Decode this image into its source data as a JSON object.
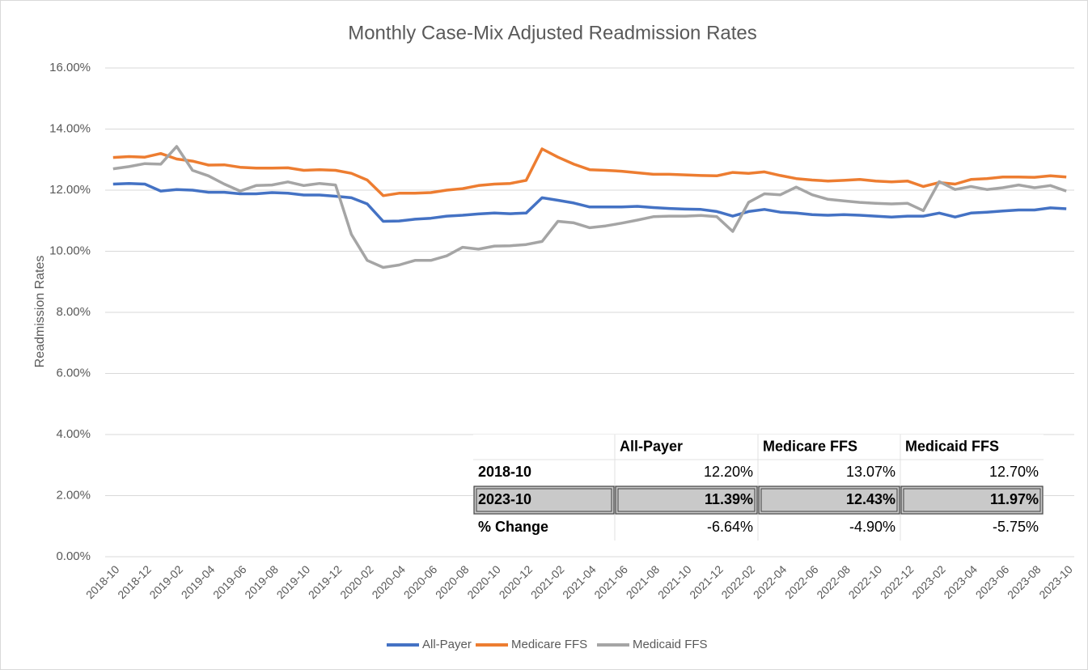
{
  "chart_data": {
    "type": "line",
    "title": "Monthly Case-Mix Adjusted Readmission Rates",
    "y_label": "Readmission Rates",
    "categories": [
      "2018-10",
      null,
      "2018-12",
      null,
      "2019-02",
      null,
      "2019-04",
      null,
      "2019-06",
      null,
      "2019-08",
      null,
      "2019-10",
      null,
      "2019-12",
      null,
      "2020-02",
      null,
      "2020-04",
      null,
      "2020-06",
      null,
      "2020-08",
      null,
      "2020-10",
      null,
      "2020-12",
      null,
      "2021-02",
      null,
      "2021-04",
      null,
      "2021-06",
      null,
      "2021-08",
      null,
      "2021-10",
      null,
      "2021-12",
      null,
      "2022-02",
      null,
      "2022-04",
      null,
      "2022-06",
      null,
      "2022-08",
      null,
      "2022-10",
      null,
      "2022-12",
      null,
      "2023-02",
      null,
      "2023-04",
      null,
      "2023-06",
      null,
      "2023-08",
      null,
      "2023-10"
    ],
    "series": [
      {
        "name": "All-Payer",
        "color": "#4472c4",
        "values": [
          12.2,
          12.22,
          12.2,
          11.97,
          12.02,
          12.0,
          11.93,
          11.93,
          11.88,
          11.88,
          11.92,
          11.9,
          11.84,
          11.84,
          11.8,
          11.75,
          11.55,
          10.98,
          10.99,
          11.05,
          11.08,
          11.15,
          11.18,
          11.22,
          11.25,
          11.23,
          11.25,
          11.75,
          11.67,
          11.58,
          11.45,
          11.45,
          11.45,
          11.47,
          11.43,
          11.4,
          11.38,
          11.37,
          11.3,
          11.15,
          11.3,
          11.37,
          11.28,
          11.25,
          11.2,
          11.18,
          11.2,
          11.18,
          11.15,
          11.12,
          11.15,
          11.15,
          11.25,
          11.12,
          11.25,
          11.28,
          11.32,
          11.35,
          11.35,
          11.42,
          11.39
        ]
      },
      {
        "name": "Medicare FFS",
        "color": "#ed7d31",
        "values": [
          13.07,
          13.1,
          13.08,
          13.2,
          13.02,
          12.95,
          12.82,
          12.83,
          12.75,
          12.72,
          12.72,
          12.73,
          12.65,
          12.67,
          12.65,
          12.55,
          12.33,
          11.82,
          11.9,
          11.9,
          11.92,
          12.0,
          12.05,
          12.15,
          12.2,
          12.22,
          12.32,
          13.35,
          13.08,
          12.85,
          12.67,
          12.65,
          12.62,
          12.57,
          12.52,
          12.52,
          12.5,
          12.48,
          12.47,
          12.58,
          12.55,
          12.6,
          12.48,
          12.38,
          12.33,
          12.3,
          12.32,
          12.35,
          12.3,
          12.27,
          12.3,
          12.12,
          12.25,
          12.2,
          12.35,
          12.38,
          12.43,
          12.43,
          12.42,
          12.47,
          12.43
        ]
      },
      {
        "name": "Medicaid FFS",
        "color": "#a5a5a5",
        "values": [
          12.7,
          12.77,
          12.87,
          12.85,
          13.43,
          12.65,
          12.47,
          12.2,
          11.97,
          12.15,
          12.17,
          12.27,
          12.15,
          12.22,
          12.17,
          10.55,
          9.7,
          9.47,
          9.55,
          9.7,
          9.7,
          9.85,
          10.13,
          10.07,
          10.17,
          10.18,
          10.22,
          10.32,
          10.98,
          10.93,
          10.77,
          10.83,
          10.92,
          11.02,
          11.13,
          11.15,
          11.15,
          11.17,
          11.13,
          10.65,
          11.6,
          11.88,
          11.85,
          12.1,
          11.85,
          11.7,
          11.65,
          11.6,
          11.57,
          11.55,
          11.57,
          11.33,
          12.28,
          12.02,
          12.12,
          12.02,
          12.08,
          12.17,
          12.08,
          12.15,
          11.97
        ]
      }
    ],
    "ylim": [
      0,
      16
    ],
    "yticks": [
      {
        "value": 0,
        "label": "0.00%"
      },
      {
        "value": 2,
        "label": "2.00%"
      },
      {
        "value": 4,
        "label": "4.00%"
      },
      {
        "value": 6,
        "label": "6.00%"
      },
      {
        "value": 8,
        "label": "8.00%"
      },
      {
        "value": 10,
        "label": "10.00%"
      },
      {
        "value": 12,
        "label": "12.00%"
      },
      {
        "value": 14,
        "label": "14.00%"
      },
      {
        "value": 16,
        "label": "16.00%"
      }
    ],
    "grid": true,
    "legend": "bottom"
  },
  "table": {
    "columns": [
      "All-Payer",
      "Medicare FFS",
      "Medicaid FFS"
    ],
    "rows": [
      [
        "2018-10",
        "12.20%",
        "13.07%",
        "12.70%"
      ],
      [
        "2023-10",
        "11.39%",
        "12.43%",
        "11.97%"
      ],
      [
        "% Change",
        "-6.64%",
        "-4.90%",
        "-5.75%"
      ]
    ]
  }
}
